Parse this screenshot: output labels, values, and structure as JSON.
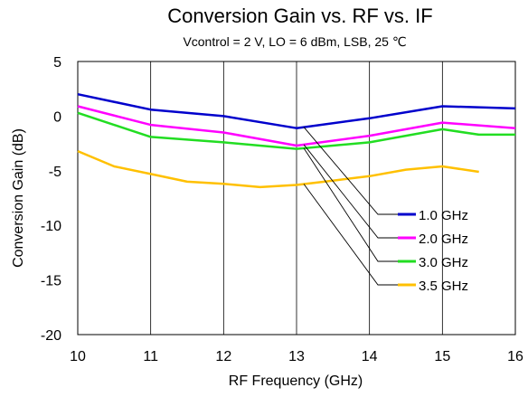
{
  "chart_data": {
    "type": "line",
    "title": "Conversion Gain vs. RF vs. IF",
    "subtitle": "Vcontrol = 2 V, LO = 6 dBm, LSB, 25 ℃",
    "xlabel": "RF Frequency (GHz)",
    "ylabel": "Conversion Gain (dB)",
    "xlim": [
      10,
      16
    ],
    "ylim": [
      -20,
      5
    ],
    "xticks": [
      10,
      11,
      12,
      13,
      14,
      15,
      16
    ],
    "yticks": [
      5,
      0,
      -5,
      -10,
      -15,
      -20
    ],
    "grid": "vertical",
    "legend_position": "lower-right",
    "series": [
      {
        "name": "1.0 GHz",
        "color": "#0000cc",
        "x": [
          10,
          11,
          12,
          13,
          14,
          15,
          16
        ],
        "y": [
          2.0,
          0.6,
          0.0,
          -1.1,
          -0.2,
          0.9,
          0.7
        ]
      },
      {
        "name": "2.0 GHz",
        "color": "#ff00ff",
        "x": [
          10,
          11,
          12,
          13,
          14,
          15,
          16
        ],
        "y": [
          0.9,
          -0.8,
          -1.5,
          -2.7,
          -1.8,
          -0.6,
          -1.1
        ]
      },
      {
        "name": "3.0 GHz",
        "color": "#22dd22",
        "x": [
          10,
          11,
          12,
          13,
          14,
          15,
          15.5,
          16
        ],
        "y": [
          0.3,
          -1.9,
          -2.4,
          -3.0,
          -2.4,
          -1.2,
          -1.7,
          -1.7
        ]
      },
      {
        "name": "3.5 GHz",
        "color": "#ffc000",
        "x": [
          10,
          10.5,
          11,
          11.5,
          12,
          12.5,
          13,
          13.5,
          14,
          14.5,
          15,
          15.5
        ],
        "y": [
          -3.2,
          -4.6,
          -5.3,
          -6.0,
          -6.2,
          -6.5,
          -6.3,
          -5.9,
          -5.5,
          -4.9,
          -4.6,
          -5.1
        ]
      }
    ]
  }
}
